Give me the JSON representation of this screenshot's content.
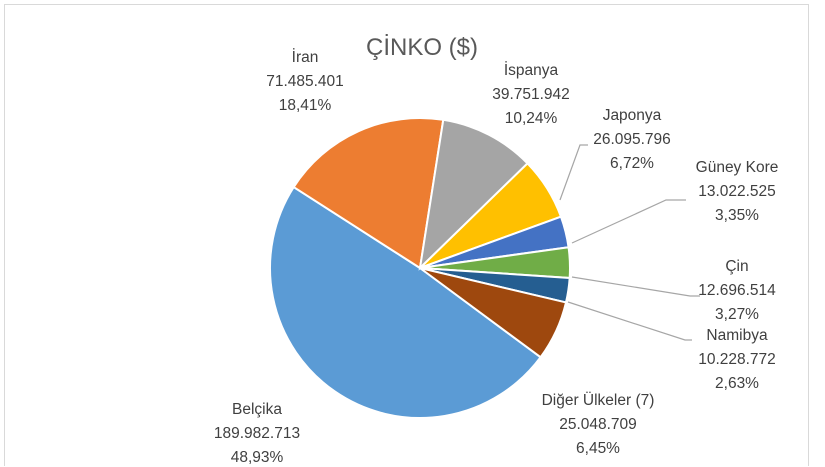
{
  "chart_data": {
    "type": "pie",
    "title": "ÇİNKO ($)",
    "slices": [
      {
        "name": "Belçika",
        "value": "189.982.713",
        "percent": "48,93%",
        "pct": 48.93,
        "color": "#5B9BD5"
      },
      {
        "name": "İran",
        "value": "71.485.401",
        "percent": "18,41%",
        "pct": 18.41,
        "color": "#ED7D31"
      },
      {
        "name": "İspanya",
        "value": "39.751.942",
        "percent": "10,24%",
        "pct": 10.24,
        "color": "#A5A5A5"
      },
      {
        "name": "Japonya",
        "value": "26.095.796",
        "percent": "6,72%",
        "pct": 6.72,
        "color": "#FFC000"
      },
      {
        "name": "Güney Kore",
        "value": "13.022.525",
        "percent": "3,35%",
        "pct": 3.35,
        "color": "#4472C4"
      },
      {
        "name": "Çin",
        "value": "12.696.514",
        "percent": "3,27%",
        "pct": 3.27,
        "color": "#70AD47"
      },
      {
        "name": "Namibya",
        "value": "10.228.772",
        "percent": "2,63%",
        "pct": 2.63,
        "color": "#255E91"
      },
      {
        "name": "Diğer Ülkeler (7)",
        "value": "25.048.709",
        "percent": "6,45%",
        "pct": 6.45,
        "color": "#9E480E"
      }
    ],
    "legend": "none"
  }
}
